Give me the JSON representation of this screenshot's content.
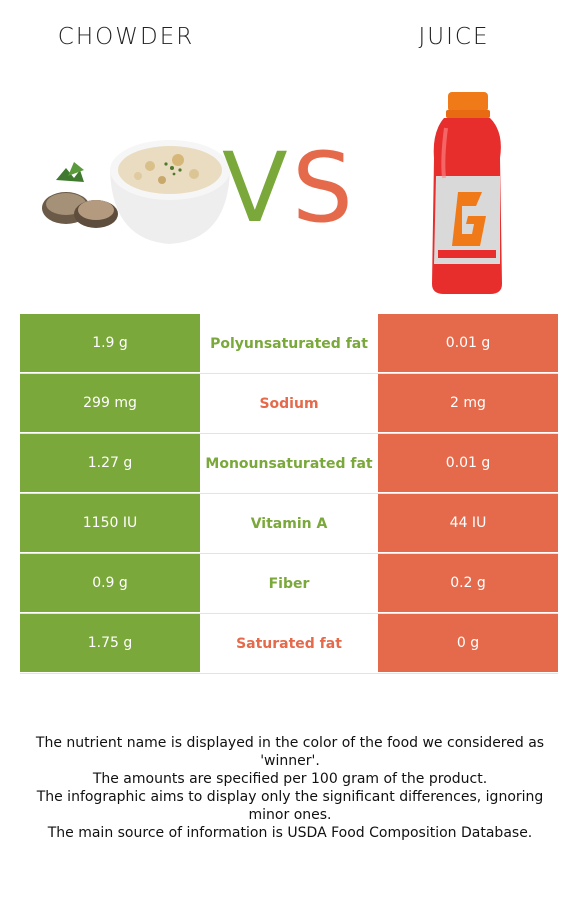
{
  "header": {
    "left_title": "CHOWDER",
    "right_title": "JUICE",
    "vs_v": "V",
    "vs_s": "S"
  },
  "colors": {
    "left_accent": "#7aa83a",
    "right_accent": "#e56a4b"
  },
  "images": {
    "left": "chowder-bowl-with-clams",
    "right": "gatorade-fruit-punch-bottle"
  },
  "rows": [
    {
      "left": "1.9 g",
      "nutrient": "Polyunsaturated fat",
      "right": "0.01 g",
      "winner": "left"
    },
    {
      "left": "299 mg",
      "nutrient": "Sodium",
      "right": "2 mg",
      "winner": "right"
    },
    {
      "left": "1.27 g",
      "nutrient": "Monounsaturated fat",
      "right": "0.01 g",
      "winner": "left"
    },
    {
      "left": "1150 IU",
      "nutrient": "Vitamin A",
      "right": "44 IU",
      "winner": "left"
    },
    {
      "left": "0.9 g",
      "nutrient": "Fiber",
      "right": "0.2 g",
      "winner": "left"
    },
    {
      "left": "1.75 g",
      "nutrient": "Saturated fat",
      "right": "0 g",
      "winner": "right"
    }
  ],
  "footer": {
    "line1": "The nutrient name is displayed in the color of the food we considered as 'winner'.",
    "line2": "The amounts are specified per 100 gram of the product.",
    "line3": "The infographic aims to display only the significant differences, ignoring minor ones.",
    "line4": "The main source of information is USDA Food Composition Database."
  }
}
